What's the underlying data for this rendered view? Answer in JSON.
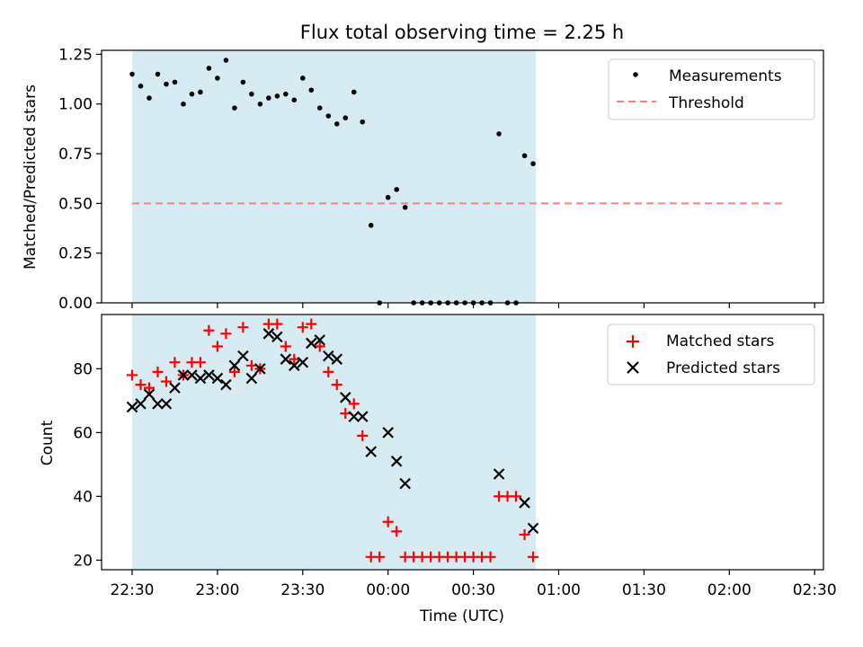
{
  "figure": {
    "title": "Flux total observing time = 2.25 h"
  },
  "colors": {
    "shade": "#add8e6",
    "threshold": "#ff7f7f",
    "matched": "#ff0000",
    "predicted": "#000000",
    "measurement": "#000000"
  },
  "chart_data": [
    {
      "type": "scatter",
      "panel": "top",
      "ylabel": "Matched/Predicted stars",
      "ylim": [
        0,
        1.27
      ],
      "yticks": [
        0.0,
        0.25,
        0.5,
        0.75,
        1.0,
        1.25
      ],
      "ytick_labels": [
        "0.00",
        "0.25",
        "0.50",
        "0.75",
        "1.00",
        "1.25"
      ],
      "xlim": [
        "22:27",
        "02:32"
      ],
      "shaded_interval": [
        "22:30",
        "00:52"
      ],
      "legend": {
        "placement": "top-right",
        "entries": [
          "Measurements",
          "Threshold"
        ]
      },
      "threshold": {
        "name": "Threshold",
        "y": 0.5,
        "x": [
          "22:30",
          "02:20"
        ]
      },
      "series": [
        {
          "name": "Measurements",
          "marker": "dot",
          "points": [
            [
              "22:30",
              1.15
            ],
            [
              "22:33",
              1.09
            ],
            [
              "22:36",
              1.03
            ],
            [
              "22:39",
              1.15
            ],
            [
              "22:42",
              1.1
            ],
            [
              "22:45",
              1.11
            ],
            [
              "22:48",
              1.0
            ],
            [
              "22:51",
              1.05
            ],
            [
              "22:54",
              1.06
            ],
            [
              "22:57",
              1.18
            ],
            [
              "23:00",
              1.13
            ],
            [
              "23:03",
              1.22
            ],
            [
              "23:06",
              0.98
            ],
            [
              "23:09",
              1.11
            ],
            [
              "23:12",
              1.05
            ],
            [
              "23:15",
              1.0
            ],
            [
              "23:18",
              1.03
            ],
            [
              "23:21",
              1.04
            ],
            [
              "23:24",
              1.05
            ],
            [
              "23:27",
              1.02
            ],
            [
              "23:30",
              1.13
            ],
            [
              "23:33",
              1.07
            ],
            [
              "23:36",
              0.98
            ],
            [
              "23:39",
              0.94
            ],
            [
              "23:42",
              0.9
            ],
            [
              "23:45",
              0.93
            ],
            [
              "23:48",
              1.06
            ],
            [
              "23:51",
              0.91
            ],
            [
              "23:54",
              0.39
            ],
            [
              "23:57",
              0.0
            ],
            [
              "00:00",
              0.53
            ],
            [
              "00:03",
              0.57
            ],
            [
              "00:06",
              0.48
            ],
            [
              "00:09",
              0.0
            ],
            [
              "00:12",
              0.0
            ],
            [
              "00:15",
              0.0
            ],
            [
              "00:18",
              0.0
            ],
            [
              "00:21",
              0.0
            ],
            [
              "00:24",
              0.0
            ],
            [
              "00:27",
              0.0
            ],
            [
              "00:30",
              0.0
            ],
            [
              "00:33",
              0.0
            ],
            [
              "00:36",
              0.0
            ],
            [
              "00:39",
              0.85
            ],
            [
              "00:42",
              0.0
            ],
            [
              "00:45",
              0.0
            ],
            [
              "00:48",
              0.74
            ],
            [
              "00:51",
              0.7
            ]
          ]
        }
      ]
    },
    {
      "type": "scatter",
      "panel": "bottom",
      "xlabel": "Time (UTC)",
      "ylabel": "Count",
      "ylim": [
        17,
        97
      ],
      "yticks": [
        20,
        40,
        60,
        80
      ],
      "ytick_labels": [
        "20",
        "40",
        "60",
        "80"
      ],
      "xlim": [
        "22:27",
        "02:32"
      ],
      "xticks": [
        "22:30",
        "23:00",
        "23:30",
        "00:00",
        "00:30",
        "01:00",
        "01:30",
        "02:00",
        "02:30"
      ],
      "shaded_interval": [
        "22:30",
        "00:52"
      ],
      "legend": {
        "placement": "top-right",
        "entries": [
          "Matched stars",
          "Predicted stars"
        ]
      },
      "series": [
        {
          "name": "Matched stars",
          "marker": "plus",
          "points": [
            [
              "22:30",
              78
            ],
            [
              "22:33",
              75
            ],
            [
              "22:36",
              74
            ],
            [
              "22:39",
              79
            ],
            [
              "22:42",
              76
            ],
            [
              "22:45",
              82
            ],
            [
              "22:48",
              78
            ],
            [
              "22:51",
              82
            ],
            [
              "22:54",
              82
            ],
            [
              "22:57",
              92
            ],
            [
              "23:00",
              87
            ],
            [
              "23:03",
              91
            ],
            [
              "23:06",
              79
            ],
            [
              "23:09",
              93
            ],
            [
              "23:12",
              81
            ],
            [
              "23:15",
              80
            ],
            [
              "23:18",
              94
            ],
            [
              "23:21",
              94
            ],
            [
              "23:24",
              87
            ],
            [
              "23:27",
              83
            ],
            [
              "23:30",
              93
            ],
            [
              "23:33",
              94
            ],
            [
              "23:36",
              87
            ],
            [
              "23:39",
              79
            ],
            [
              "23:42",
              75
            ],
            [
              "23:45",
              66
            ],
            [
              "23:48",
              69
            ],
            [
              "23:51",
              59
            ],
            [
              "23:54",
              21
            ],
            [
              "23:57",
              21
            ],
            [
              "00:00",
              32
            ],
            [
              "00:03",
              29
            ],
            [
              "00:06",
              21
            ],
            [
              "00:09",
              21
            ],
            [
              "00:12",
              21
            ],
            [
              "00:15",
              21
            ],
            [
              "00:18",
              21
            ],
            [
              "00:21",
              21
            ],
            [
              "00:24",
              21
            ],
            [
              "00:27",
              21
            ],
            [
              "00:30",
              21
            ],
            [
              "00:33",
              21
            ],
            [
              "00:36",
              21
            ],
            [
              "00:39",
              40
            ],
            [
              "00:42",
              40
            ],
            [
              "00:45",
              40
            ],
            [
              "00:48",
              28
            ],
            [
              "00:51",
              21
            ]
          ]
        },
        {
          "name": "Predicted stars",
          "marker": "x",
          "points": [
            [
              "22:30",
              68
            ],
            [
              "22:33",
              69
            ],
            [
              "22:36",
              72
            ],
            [
              "22:39",
              69
            ],
            [
              "22:42",
              69
            ],
            [
              "22:45",
              74
            ],
            [
              "22:48",
              78
            ],
            [
              "22:51",
              78
            ],
            [
              "22:54",
              77
            ],
            [
              "22:57",
              78
            ],
            [
              "23:00",
              77
            ],
            [
              "23:03",
              75
            ],
            [
              "23:06",
              81
            ],
            [
              "23:09",
              84
            ],
            [
              "23:12",
              77
            ],
            [
              "23:15",
              80
            ],
            [
              "23:18",
              91
            ],
            [
              "23:21",
              90
            ],
            [
              "23:24",
              83
            ],
            [
              "23:27",
              81
            ],
            [
              "23:30",
              82
            ],
            [
              "23:33",
              88
            ],
            [
              "23:36",
              89
            ],
            [
              "23:39",
              84
            ],
            [
              "23:42",
              83
            ],
            [
              "23:45",
              71
            ],
            [
              "23:48",
              65
            ],
            [
              "23:51",
              65
            ],
            [
              "23:54",
              54
            ],
            [
              "00:00",
              60
            ],
            [
              "00:03",
              51
            ],
            [
              "00:06",
              44
            ],
            [
              "00:39",
              47
            ],
            [
              "00:48",
              38
            ],
            [
              "00:51",
              30
            ]
          ]
        }
      ]
    }
  ]
}
